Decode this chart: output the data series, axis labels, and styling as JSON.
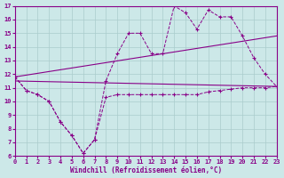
{
  "xlabel": "Windchill (Refroidissement éolien,°C)",
  "xlim": [
    0,
    23
  ],
  "ylim": [
    6,
    17
  ],
  "xticks": [
    0,
    1,
    2,
    3,
    4,
    5,
    6,
    7,
    8,
    9,
    10,
    11,
    12,
    13,
    14,
    15,
    16,
    17,
    18,
    19,
    20,
    21,
    22,
    23
  ],
  "yticks": [
    6,
    7,
    8,
    9,
    10,
    11,
    12,
    13,
    14,
    15,
    16,
    17
  ],
  "background_color": "#cce8e8",
  "grid_color": "#aacccc",
  "line_color": "#880088",
  "series": [
    {
      "x": [
        0,
        1,
        2,
        3,
        4,
        5,
        6,
        7,
        8,
        9,
        10,
        11,
        12,
        13,
        14,
        15,
        16,
        17,
        18,
        19,
        20,
        21,
        22,
        23
      ],
      "y": [
        11.8,
        10.8,
        10.5,
        10.0,
        8.5,
        7.5,
        6.2,
        7.2,
        10.3,
        10.5,
        10.5,
        10.5,
        10.5,
        10.5,
        10.5,
        10.5,
        10.5,
        10.7,
        10.8,
        10.9,
        11.0,
        11.0,
        11.0,
        11.1
      ],
      "markers": true
    },
    {
      "x": [
        0,
        1,
        2,
        3,
        4,
        5,
        6,
        7,
        8,
        9,
        10,
        11,
        12,
        13,
        14,
        15,
        16,
        17,
        18,
        19,
        20,
        21,
        22,
        23
      ],
      "y": [
        11.8,
        10.8,
        10.5,
        10.0,
        8.5,
        7.5,
        6.2,
        7.2,
        11.5,
        13.5,
        15.0,
        15.0,
        13.5,
        13.5,
        17.0,
        16.5,
        15.3,
        16.7,
        16.2,
        16.2,
        14.8,
        13.2,
        12.0,
        11.1
      ],
      "markers": true
    },
    {
      "x": [
        0,
        23
      ],
      "y": [
        11.5,
        11.1
      ],
      "markers": false
    },
    {
      "x": [
        0,
        23
      ],
      "y": [
        11.8,
        14.8
      ],
      "markers": false
    }
  ]
}
